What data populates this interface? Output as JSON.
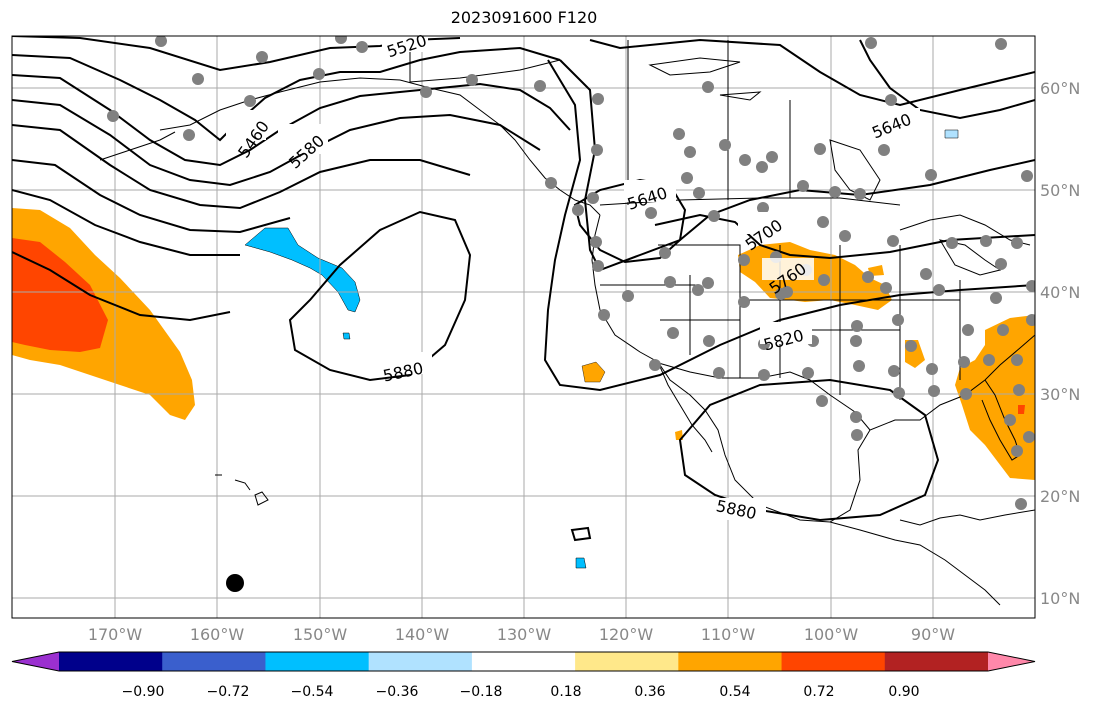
{
  "title": "2023091600 F120",
  "lon_labels": [
    "170°W",
    "160°W",
    "150°W",
    "140°W",
    "130°W",
    "120°W",
    "110°W",
    "100°W",
    "90°W"
  ],
  "lat_labels": [
    "60°N",
    "50°N",
    "40°N",
    "30°N",
    "20°N",
    "10°N"
  ],
  "contour_labels": [
    "5520",
    "5460",
    "5580",
    "5640",
    "5640",
    "5700",
    "5760",
    "5820",
    "5880",
    "5880"
  ],
  "colorbar": {
    "ticks": [
      "−0.90",
      "−0.72",
      "−0.54",
      "−0.36",
      "−0.18",
      "0.18",
      "0.36",
      "0.54",
      "0.72",
      "0.90"
    ],
    "colors": [
      "#9b30d0",
      "#00008b",
      "#3a5fcd",
      "#00bfff",
      "#b0e2ff",
      "#ffffff",
      "#ffe88a",
      "#ffa500",
      "#ff4500",
      "#b22222",
      "#ff88aa"
    ]
  },
  "colors": {
    "grid": "#aaaaaa",
    "contour": "#000000",
    "station": "#808080"
  }
}
